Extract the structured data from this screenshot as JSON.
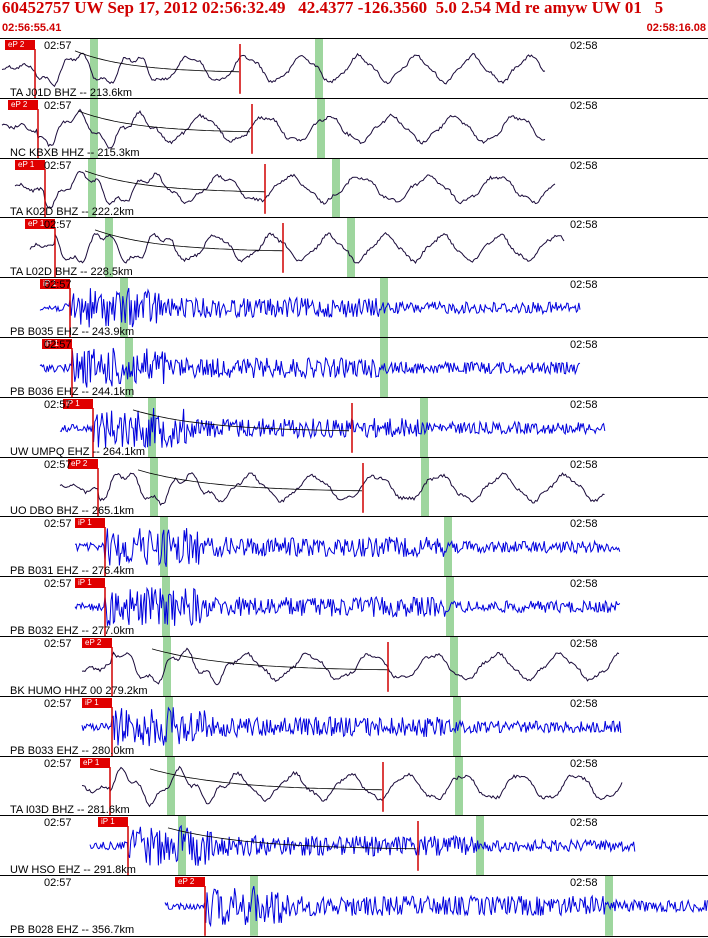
{
  "header": {
    "title": "60452757 UW Sep 17, 2012 02:56:32.49   42.4377 -126.3560  5.0 2.54 Md re amyw UW 01   5",
    "time_start": "02:56:55.41",
    "time_end": "02:58:16.08"
  },
  "colors": {
    "accent": "#d00000",
    "broadband": "#1a0a3a",
    "shortperiod": "#0000dd",
    "window": "#9ed69e"
  },
  "traces": [
    {
      "label": "TA J01D BHZ -- 213.6km",
      "phase": "eP 2",
      "t1": "02:57",
      "t2": "02:58",
      "kind": "bb"
    },
    {
      "label": "NC KBXB HHZ -- 215.3km",
      "phase": "eP 2",
      "t1": "02:57",
      "t2": "02:58",
      "kind": "bb"
    },
    {
      "label": "TA K02D BHZ -- 222.2km",
      "phase": "eP 1",
      "t1": "02:57",
      "t2": "02:58",
      "kind": "bb"
    },
    {
      "label": "TA L02D BHZ -- 228.5km",
      "phase": "eP 1",
      "t1": "02:57",
      "t2": "02:58",
      "kind": "bb"
    },
    {
      "label": "PB B035 EHZ -- 243.9km",
      "phase": "iP 1",
      "t1": "02:57",
      "t2": "02:58",
      "kind": "sp"
    },
    {
      "label": "PB B036 EHZ -- 244.1km",
      "phase": "iP 1",
      "t1": "02:57",
      "t2": "02:58",
      "kind": "sp"
    },
    {
      "label": "UW UMPQ EHZ -- 264.1km",
      "phase": "iP 1",
      "t1": "02:57",
      "t2": "02:58",
      "kind": "sp"
    },
    {
      "label": "UO DBO BHZ -- 265.1km",
      "phase": "eP 2",
      "t1": "02:57",
      "t2": "02:58",
      "kind": "bb"
    },
    {
      "label": "PB B031 EHZ -- 276.4km",
      "phase": "iP 1",
      "t1": "02:57",
      "t2": "02:58",
      "kind": "sp"
    },
    {
      "label": "PB B032 EHZ -- 277.0km",
      "phase": "iP 1",
      "t1": "02:57",
      "t2": "02:58",
      "kind": "sp"
    },
    {
      "label": "BK HUMO HHZ 00 279.2km",
      "phase": "eP 2",
      "t1": "02:57",
      "t2": "02:58",
      "kind": "bb"
    },
    {
      "label": "PB B033 EHZ -- 280.0km",
      "phase": "iP 1",
      "t1": "02:57",
      "t2": "02:58",
      "kind": "sp"
    },
    {
      "label": "TA I03D BHZ -- 281.6km",
      "phase": "eP 1",
      "t1": "02:57",
      "t2": "02:58",
      "kind": "bb"
    },
    {
      "label": "UW HSO EHZ -- 291.8km",
      "phase": "iP 1",
      "t1": "02:57",
      "t2": "02:58",
      "kind": "sp"
    },
    {
      "label": "PB B028 EHZ -- 356.7km",
      "phase": "eP 2",
      "t1": "02:57",
      "t2": "02:58",
      "kind": "sp"
    }
  ]
}
